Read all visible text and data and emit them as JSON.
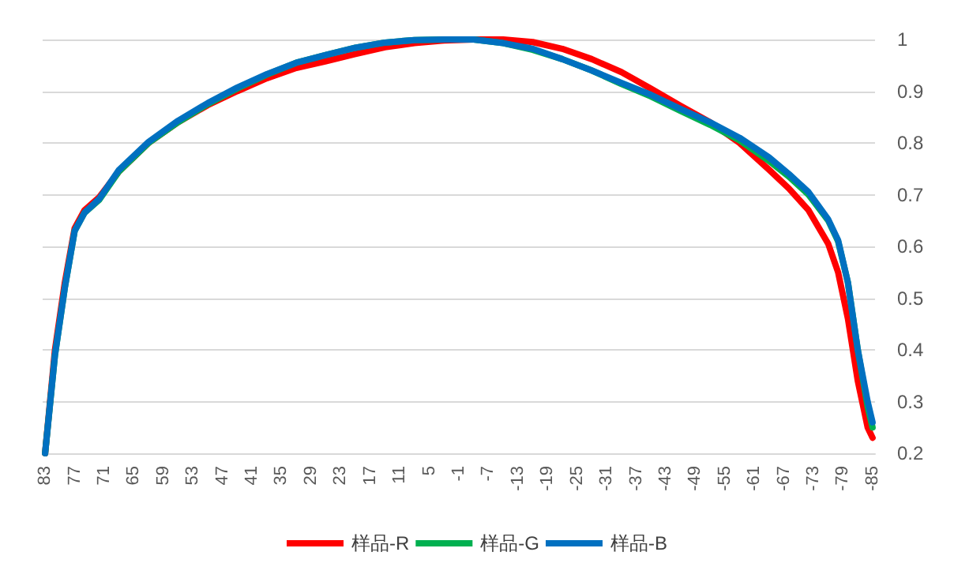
{
  "chart_data": {
    "type": "line",
    "x": [
      83,
      81,
      79,
      77,
      75,
      72,
      68,
      62,
      56,
      50,
      44,
      38,
      32,
      26,
      20,
      14,
      8,
      2,
      -4,
      -10,
      -16,
      -22,
      -28,
      -34,
      -40,
      -46,
      -52,
      -58,
      -64,
      -68,
      -72,
      -76,
      -78,
      -80,
      -82,
      -84,
      -85
    ],
    "xlim": [
      83.5,
      -85.5
    ],
    "xticks": [
      83,
      77,
      71,
      65,
      59,
      53,
      47,
      41,
      35,
      29,
      23,
      17,
      11,
      5,
      -1,
      -7,
      -13,
      -19,
      -25,
      -31,
      -37,
      -43,
      -49,
      -55,
      -61,
      -67,
      -73,
      -79,
      -85
    ],
    "ylim": [
      0.2,
      1
    ],
    "yticks": [
      0.2,
      0.3,
      0.4,
      0.5,
      0.6,
      0.7,
      0.8,
      0.9,
      1
    ],
    "grid": "y",
    "legend": "bottom",
    "line_style": "solid",
    "marker": "none",
    "series": [
      {
        "name": "样品-R",
        "color": "#ff0000",
        "values": [
          0.2,
          0.4,
          0.53,
          0.635,
          0.67,
          0.695,
          0.745,
          0.8,
          0.84,
          0.873,
          0.9,
          0.925,
          0.945,
          0.958,
          0.972,
          0.985,
          0.993,
          0.998,
          1.0,
          1.0,
          0.995,
          0.982,
          0.962,
          0.937,
          0.905,
          0.872,
          0.84,
          0.8,
          0.748,
          0.712,
          0.67,
          0.605,
          0.55,
          0.46,
          0.34,
          0.25,
          0.23
        ]
      },
      {
        "name": "样品-G",
        "color": "#00b050",
        "values": [
          0.2,
          0.39,
          0.52,
          0.63,
          0.665,
          0.69,
          0.745,
          0.8,
          0.84,
          0.875,
          0.905,
          0.932,
          0.955,
          0.97,
          0.984,
          0.994,
          0.999,
          1.0,
          1.0,
          0.993,
          0.98,
          0.962,
          0.94,
          0.914,
          0.89,
          0.862,
          0.835,
          0.805,
          0.765,
          0.735,
          0.7,
          0.65,
          0.61,
          0.53,
          0.4,
          0.29,
          0.25
        ]
      },
      {
        "name": "样品-B",
        "color": "#0070c0",
        "values": [
          0.2,
          0.39,
          0.52,
          0.63,
          0.665,
          0.692,
          0.748,
          0.802,
          0.843,
          0.877,
          0.907,
          0.933,
          0.955,
          0.97,
          0.984,
          0.994,
          0.999,
          1.0,
          1.0,
          0.993,
          0.982,
          0.962,
          0.94,
          0.916,
          0.893,
          0.866,
          0.84,
          0.81,
          0.772,
          0.74,
          0.705,
          0.652,
          0.612,
          0.53,
          0.4,
          0.3,
          0.26
        ]
      }
    ]
  }
}
